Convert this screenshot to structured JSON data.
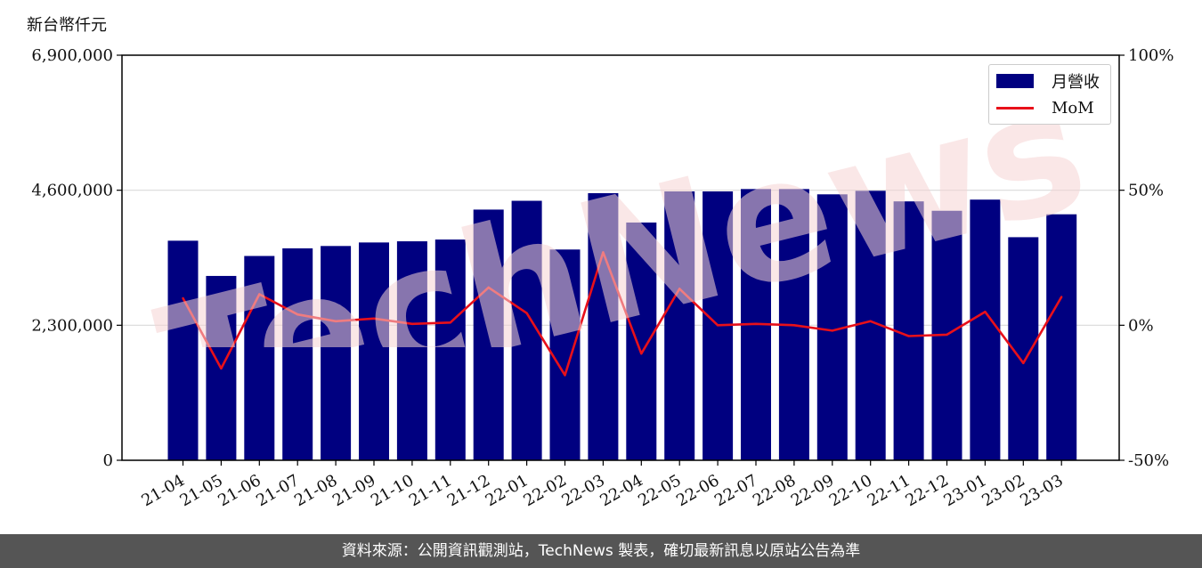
{
  "unit_label": "新台幣仟元",
  "footer_text": "資料來源：公開資訊觀測站，TechNews 製表，確切最新訊息以原站公告為準",
  "watermark": "TechNews",
  "colors": {
    "bar": "#000080",
    "line": "#e8101a",
    "footer_bg": "#555555",
    "grid": "#d9d9d9"
  },
  "chart_data": {
    "type": "bar",
    "categories": [
      "21-04",
      "21-05",
      "21-06",
      "21-07",
      "21-08",
      "21-09",
      "21-10",
      "21-11",
      "21-12",
      "22-01",
      "22-02",
      "22-03",
      "22-04",
      "22-05",
      "22-06",
      "22-07",
      "22-08",
      "22-09",
      "22-10",
      "22-11",
      "22-12",
      "23-01",
      "23-02",
      "23-03"
    ],
    "series": [
      {
        "name": "月營收",
        "axis": "left",
        "kind": "bar",
        "values": [
          3740000,
          3140000,
          3480000,
          3610000,
          3650000,
          3710000,
          3730000,
          3760000,
          4270000,
          4420000,
          3590000,
          4550000,
          4050000,
          4580000,
          4580000,
          4620000,
          4620000,
          4530000,
          4590000,
          4410000,
          4250000,
          4440000,
          3800000,
          4190000
        ]
      },
      {
        "name": "MoM",
        "axis": "right",
        "kind": "line",
        "values": [
          10,
          -16,
          11.5,
          4,
          1.5,
          2.5,
          0.5,
          1,
          14,
          4.5,
          -18.5,
          27,
          -10.5,
          13.5,
          0,
          0.5,
          0,
          -2,
          1.5,
          -4,
          -3.5,
          5,
          -14,
          10.5
        ]
      }
    ],
    "ylim_left": [
      0,
      6900000
    ],
    "yticks_left": [
      "0",
      "2,300,000",
      "4,600,000",
      "6,900,000"
    ],
    "ylim_right": [
      -50,
      100
    ],
    "yticks_right": [
      "-50%",
      "0%",
      "50%",
      "100%"
    ],
    "grid": "horizontal",
    "legend_position": "top-right"
  }
}
